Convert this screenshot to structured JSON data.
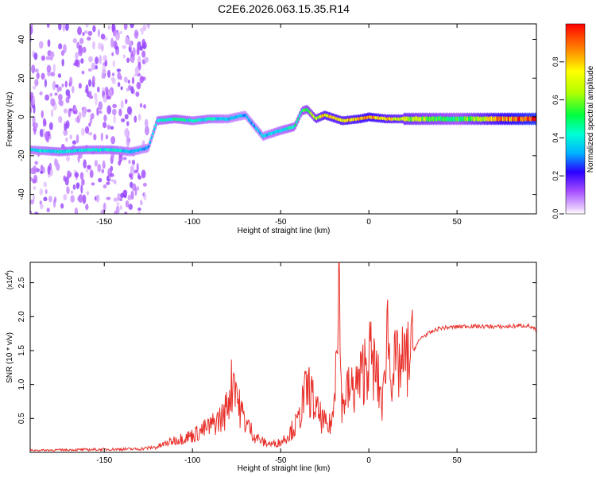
{
  "title": "C2E6.2026.063.15.35.R14",
  "colors": {
    "snr_line": "#e8302a",
    "axis": "#000000",
    "background": "#ffffff"
  },
  "chart_data": [
    {
      "type": "heatmap",
      "title": "C2E6.2026.063.15.35.R14",
      "xlabel": "Height of straight line (km)",
      "ylabel": "Frequency (Hz)",
      "xlim": [
        -192,
        95
      ],
      "ylim": [
        -50,
        48
      ],
      "xticks": [
        -150,
        -100,
        -50,
        0,
        50
      ],
      "xtick_labels": [
        "-150",
        "-100",
        "-50",
        "0",
        "50"
      ],
      "yticks": [
        -40,
        -20,
        0,
        20,
        40
      ],
      "ytick_labels": [
        "-40",
        "-20",
        "0",
        "20",
        "40"
      ],
      "colorbar": {
        "label": "Normalized spectral amplitude",
        "range": [
          0,
          1
        ],
        "ticks": [
          0.0,
          0.2,
          0.4,
          0.6,
          0.8
        ],
        "tick_labels": [
          "0.0",
          "0.2",
          "0.4",
          "0.6",
          "0.8"
        ],
        "colormap": "rainbow"
      },
      "ridge": {
        "x": [
          -192,
          -175,
          -160,
          -145,
          -135,
          -125,
          -120,
          -110,
          -100,
          -90,
          -80,
          -70,
          -60,
          -50,
          -42,
          -38,
          -35,
          -30,
          -25,
          -15,
          -5,
          0,
          10,
          25,
          50,
          75,
          95
        ],
        "freq": [
          -17,
          -18,
          -17,
          -17,
          -18,
          -16,
          -2,
          -1,
          -2,
          -1,
          -1,
          1,
          -10,
          -7,
          -5,
          3,
          4,
          -1,
          1,
          -2,
          -1,
          0,
          -1,
          -1,
          -1,
          -1,
          -1
        ],
        "amplitude": [
          0.35,
          0.4,
          0.4,
          0.4,
          0.35,
          0.3,
          0.4,
          0.45,
          0.4,
          0.4,
          0.35,
          0.3,
          0.35,
          0.4,
          0.45,
          0.5,
          0.55,
          0.65,
          0.75,
          0.75,
          0.8,
          0.85,
          0.75,
          0.65,
          0.5,
          0.85,
          1.0
        ]
      }
    },
    {
      "type": "line",
      "xlabel": "Height of straight line (km)",
      "ylabel": "SNR (10 * v/v)",
      "y_multiplier": "(x10",
      "y_multiplier_exp": "4",
      "y_multiplier_close": ")",
      "xlim": [
        -192,
        95
      ],
      "ylim": [
        0,
        2.8
      ],
      "xticks": [
        -150,
        -100,
        -50,
        0,
        50
      ],
      "xtick_labels": [
        "-150",
        "-100",
        "-50",
        "0",
        "50"
      ],
      "yticks": [
        0.5,
        1.0,
        1.5,
        2.0,
        2.5
      ],
      "ytick_labels": [
        "0.5",
        "1.0",
        "1.5",
        "2.0",
        "2.5"
      ],
      "series": [
        {
          "name": "SNR",
          "x": [
            -192,
            -160,
            -130,
            -120,
            -110,
            -100,
            -90,
            -82,
            -78,
            -76,
            -74,
            -70,
            -65,
            -60,
            -55,
            -50,
            -45,
            -40,
            -37,
            -34,
            -30,
            -27,
            -23,
            -20,
            -18,
            -17,
            -16,
            -15,
            -13,
            -10,
            -8,
            -5,
            -2,
            0,
            3,
            6,
            8,
            9,
            10,
            12,
            15,
            20,
            25,
            30,
            40,
            55,
            75,
            90,
            95
          ],
          "y": [
            0.03,
            0.04,
            0.05,
            0.08,
            0.18,
            0.25,
            0.38,
            0.55,
            0.95,
            1.22,
            0.7,
            0.45,
            0.25,
            0.15,
            0.12,
            0.15,
            0.28,
            0.45,
            0.8,
            0.95,
            0.62,
            0.5,
            0.35,
            0.55,
            2.2,
            2.8,
            1.2,
            0.65,
            0.9,
            0.9,
            0.95,
            1.05,
            1.3,
            1.45,
            1.25,
            0.95,
            0.7,
            1.1,
            2.05,
            1.3,
            1.25,
            1.3,
            1.5,
            1.7,
            1.83,
            1.86,
            1.85,
            1.87,
            1.8
          ]
        }
      ]
    }
  ]
}
